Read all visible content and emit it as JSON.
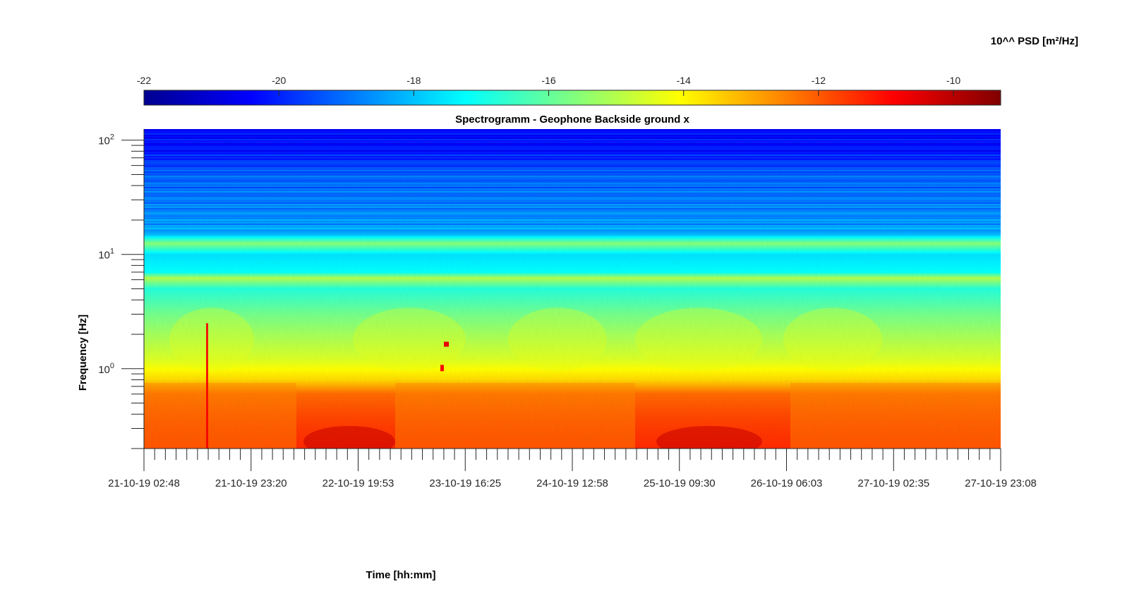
{
  "chart_data": {
    "type": "heatmap",
    "title": "Spectrogramm - Geophone Backside ground x",
    "xlabel": "Time [hh:mm]",
    "ylabel": "Frequency [Hz]",
    "y_scale": "log",
    "ylim": [
      0.2,
      125
    ],
    "y_ticks": [
      {
        "base": "10",
        "exp": "0",
        "value": 1
      },
      {
        "base": "10",
        "exp": "1",
        "value": 10
      },
      {
        "base": "10",
        "exp": "2",
        "value": 100
      }
    ],
    "x_ticks": [
      "21-10-19 02:48",
      "21-10-19 23:20",
      "22-10-19 19:53",
      "23-10-19 16:25",
      "24-10-19 12:58",
      "25-10-19 09:30",
      "26-10-19 06:03",
      "27-10-19 02:35",
      "27-10-19 23:08"
    ],
    "colorbar": {
      "label": "10^^ PSD [m²/Hz]",
      "ticks": [
        "-22",
        "-20",
        "-18",
        "-16",
        "-14",
        "-12",
        "-10"
      ],
      "range": [
        -22,
        -9.3
      ],
      "colormap": "jet",
      "location": "top"
    },
    "psd_profile_by_frequency": [
      {
        "freq_hz": 125,
        "log10_psd": -20.3
      },
      {
        "freq_hz": 80,
        "log10_psd": -20.2
      },
      {
        "freq_hz": 50,
        "log10_psd": -19.2
      },
      {
        "freq_hz": 30,
        "log10_psd": -18.9
      },
      {
        "freq_hz": 20,
        "log10_psd": -18.6
      },
      {
        "freq_hz": 15,
        "log10_psd": -18.2
      },
      {
        "freq_hz": 12.5,
        "log10_psd": -15.5
      },
      {
        "freq_hz": 10,
        "log10_psd": -17.6
      },
      {
        "freq_hz": 7,
        "log10_psd": -17.2
      },
      {
        "freq_hz": 6.2,
        "log10_psd": -15.0
      },
      {
        "freq_hz": 5,
        "log10_psd": -16.8
      },
      {
        "freq_hz": 3,
        "log10_psd": -15.8
      },
      {
        "freq_hz": 2,
        "log10_psd": -15.2
      },
      {
        "freq_hz": 1.2,
        "log10_psd": -14.5
      },
      {
        "freq_hz": 0.8,
        "log10_psd": -13.6
      },
      {
        "freq_hz": 0.6,
        "log10_psd": -12.2
      },
      {
        "freq_hz": 0.4,
        "log10_psd": -11.8
      },
      {
        "freq_hz": 0.3,
        "log10_psd": -11.6
      },
      {
        "freq_hz": 0.2,
        "log10_psd": -11.4
      }
    ]
  }
}
